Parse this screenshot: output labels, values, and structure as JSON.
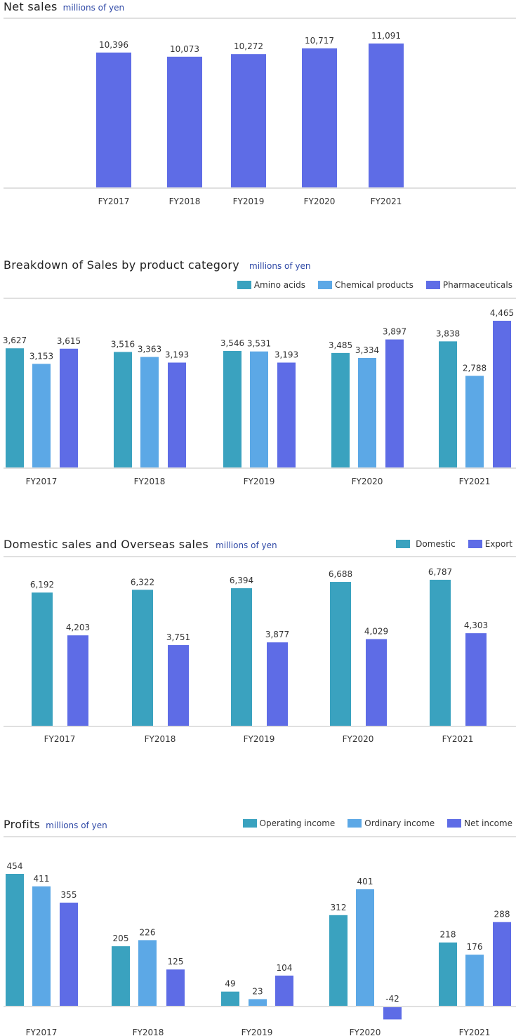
{
  "colors": {
    "net_sales": "#5e6ce6",
    "teal": "#3aa2bf",
    "light_blue": "#5ca8e6",
    "blue": "#5e6ce6"
  },
  "chart_data": [
    {
      "id": "net_sales",
      "type": "bar",
      "title": "Net sales",
      "unit": "millions of yen",
      "xlabel": "",
      "ylabel": "",
      "categories": [
        "FY2017",
        "FY2018",
        "FY2019",
        "FY2020",
        "FY2021"
      ],
      "series": [
        {
          "name": "Net sales",
          "values": [
            10396,
            10073,
            10272,
            10717,
            11091
          ],
          "labels": [
            "10,396",
            "10,073",
            "10,272",
            "10,717",
            "11,091"
          ]
        }
      ],
      "legend": "none",
      "grid": false
    },
    {
      "id": "breakdown",
      "type": "bar",
      "title": "Breakdown of Sales by product category",
      "unit": "millions of yen",
      "categories": [
        "FY2017",
        "FY2018",
        "FY2019",
        "FY2020",
        "FY2021"
      ],
      "series": [
        {
          "name": "Amino acids",
          "values": [
            3627,
            3516,
            3546,
            3485,
            3838
          ],
          "labels": [
            "3,627",
            "3,516",
            "3,546",
            "3,485",
            "3,838"
          ]
        },
        {
          "name": "Chemical products",
          "values": [
            3153,
            3363,
            3531,
            3334,
            2788
          ],
          "labels": [
            "3,153",
            "3,363",
            "3,531",
            "3,334",
            "2,788"
          ]
        },
        {
          "name": "Pharmaceuticals",
          "values": [
            3615,
            3193,
            3193,
            3897,
            4465
          ],
          "labels": [
            "3,615",
            "3,193",
            "3,193",
            "3,897",
            "4,465"
          ]
        }
      ],
      "legend": "top-right",
      "grid": false
    },
    {
      "id": "domestic_overseas",
      "type": "bar",
      "title": "Domestic sales and Overseas sales",
      "unit": "millions of yen",
      "categories": [
        "FY2017",
        "FY2018",
        "FY2019",
        "FY2020",
        "FY2021"
      ],
      "series": [
        {
          "name": "Domestic",
          "values": [
            6192,
            6322,
            6394,
            6688,
            6787
          ],
          "labels": [
            "6,192",
            "6,322",
            "6,394",
            "6,688",
            "6,787"
          ]
        },
        {
          "name": "Export",
          "values": [
            4203,
            3751,
            3877,
            4029,
            4303
          ],
          "labels": [
            "4,203",
            "3,751",
            "3,877",
            "4,029",
            "4,303"
          ]
        }
      ],
      "legend": "top-right",
      "grid": false
    },
    {
      "id": "profits",
      "type": "bar",
      "title": "Profits",
      "unit": "millions of yen",
      "categories": [
        "FY2017",
        "FY2018",
        "FY2019",
        "FY2020",
        "FY2021"
      ],
      "series": [
        {
          "name": "Operating income",
          "values": [
            454,
            205,
            49,
            312,
            218
          ],
          "labels": [
            "454",
            "205",
            "49",
            "312",
            "218"
          ]
        },
        {
          "name": "Ordinary income",
          "values": [
            411,
            226,
            23,
            401,
            176
          ],
          "labels": [
            "411",
            "226",
            "23",
            "401",
            "176"
          ]
        },
        {
          "name": "Net income",
          "values": [
            355,
            125,
            104,
            -42,
            288
          ],
          "labels": [
            "355",
            "125",
            "104",
            "-42",
            "288"
          ]
        }
      ],
      "legend": "top-right",
      "grid": false
    }
  ]
}
